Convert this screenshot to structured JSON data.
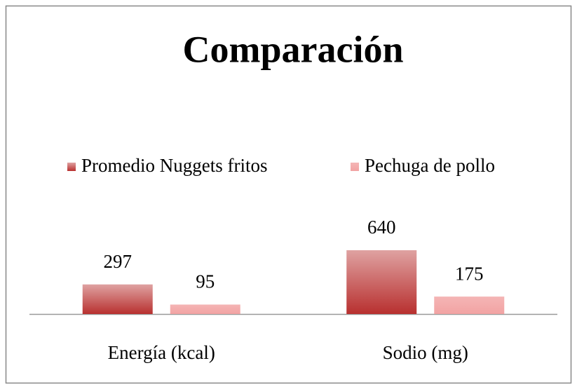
{
  "chart_data": {
    "type": "bar",
    "title": "Comparación",
    "categories": [
      "Energía (kcal)",
      "Sodio (mg)"
    ],
    "series": [
      {
        "name": "Promedio Nuggets fritos",
        "color": "#b8302f",
        "values": [
          297,
          640
        ]
      },
      {
        "name": "Pechuga de pollo",
        "color": "#f2a3a3",
        "values": [
          95,
          175
        ]
      }
    ],
    "legend": "top"
  }
}
